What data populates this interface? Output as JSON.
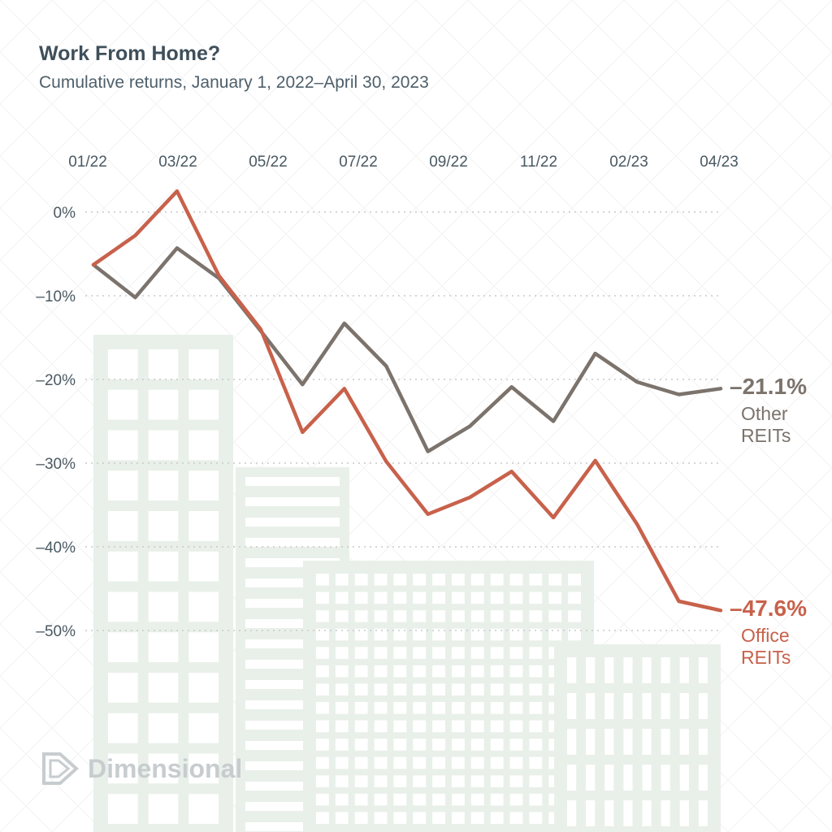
{
  "header": {
    "title": "Work From Home?",
    "subtitle": "Cumulative returns, January 1, 2022–April 30, 2023"
  },
  "logo": {
    "text": "Dimensional",
    "icon": "dimensional-logo-icon"
  },
  "colors": {
    "office": "#c8614b",
    "other": "#7b736c",
    "grid": "#c9c9c9",
    "buildings": "#e9f0e9",
    "text": "#3f4f5a"
  },
  "chart_data": {
    "type": "line",
    "title": "Work From Home?",
    "subtitle": "Cumulative returns, January 1, 2022–April 30, 2023",
    "x_ticks": [
      "01/22",
      "03/22",
      "05/22",
      "07/22",
      "09/22",
      "11/22",
      "02/23",
      "04/23"
    ],
    "y_ticks": [
      "0%",
      "–10%",
      "–20%",
      "–30%",
      "–40%",
      "–50%"
    ],
    "y_tick_values": [
      0,
      -10,
      -20,
      -30,
      -40,
      -50
    ],
    "ylim": [
      -56,
      5
    ],
    "x_axis_position": "top",
    "grid": true,
    "x": [
      "01/22",
      "",
      "03/22",
      "",
      "05/22",
      "",
      "07/22",
      "",
      "09/22",
      "",
      "11/22",
      "",
      "02/23",
      "",
      "",
      "04/23"
    ],
    "series": [
      {
        "key": "other",
        "values": [
          -6.3,
          -10.2,
          -4.3,
          -7.9,
          -14.2,
          -20.6,
          -13.3,
          -18.4,
          -28.6,
          -25.6,
          -20.9,
          -25.0,
          -16.9,
          -20.3,
          -21.8,
          -21.1
        ],
        "end_value": "–21.1%",
        "label_line1": "Other",
        "label_line2": "REITs"
      },
      {
        "key": "office",
        "values": [
          -6.3,
          -2.8,
          2.5,
          -7.6,
          -14.0,
          -26.3,
          -21.1,
          -29.8,
          -36.1,
          -34.1,
          -31.0,
          -36.5,
          -29.7,
          -37.3,
          -46.5,
          -47.6
        ],
        "end_value": "–47.6%",
        "label_line1": "Office",
        "label_line2": "REITs"
      }
    ]
  }
}
